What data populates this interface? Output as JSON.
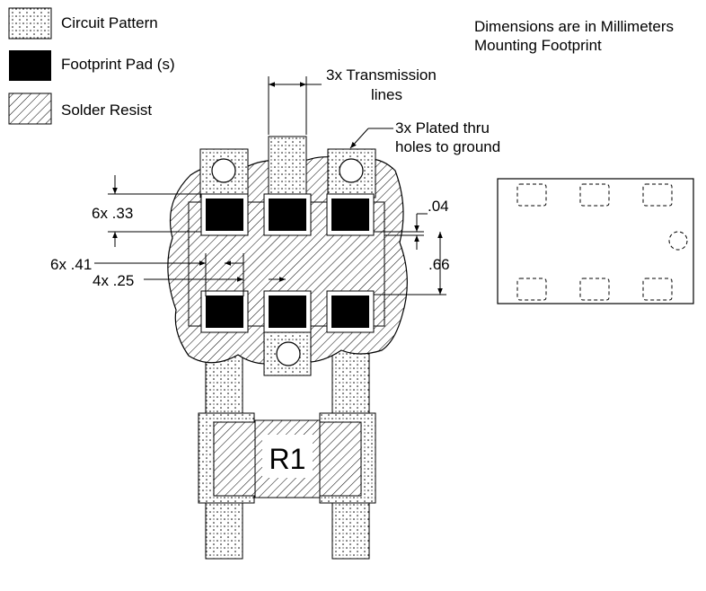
{
  "legend": {
    "circuit_pattern": "Circuit Pattern",
    "footprint_pad": "Footprint Pad (s)",
    "solder_resist": "Solder Resist"
  },
  "notes": {
    "line1": "Dimensions are in Millimeters",
    "line2": "Mounting Footprint"
  },
  "callouts": {
    "transmission_line1": "3x Transmission",
    "transmission_line2": "lines",
    "holes_line1": "3x Plated thru",
    "holes_line2": "holes to ground"
  },
  "dimensions": {
    "pad_height": "6x .33",
    "pad_width": "6x .41",
    "pad_gap": "4x .25",
    "resist_margin": ".04",
    "pad_pitch": ".66"
  },
  "resistor": {
    "label": "R1"
  },
  "colors": {
    "ink": "#000000",
    "pad_fill": "#000000",
    "background": "#ffffff"
  }
}
